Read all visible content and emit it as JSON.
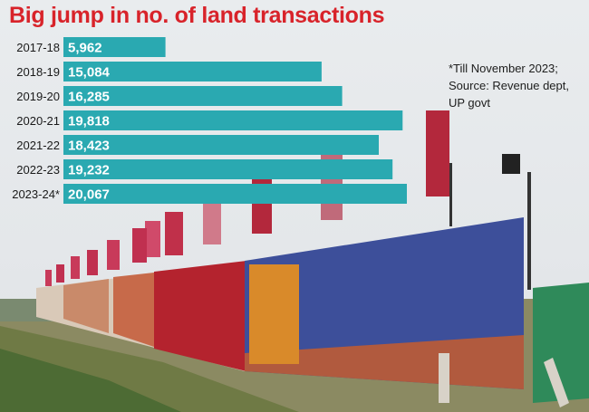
{
  "chart_data": {
    "type": "bar",
    "orientation": "horizontal",
    "title": "Big jump in no. of land transactions",
    "categories": [
      "2017-18",
      "2018-19",
      "2019-20",
      "2020-21",
      "2021-22",
      "2022-23",
      "2023-24*"
    ],
    "values": [
      5962,
      15084,
      16285,
      19818,
      18423,
      19232,
      20067
    ],
    "value_labels": [
      "5,962",
      "15,084",
      "16,285",
      "19,818",
      "18,423",
      "19,232",
      "20,067"
    ],
    "bar_color": "#2aa9b1",
    "notes": [
      "*Till November 2023;",
      "Source: Revenue dept,",
      "UP govt"
    ]
  },
  "colors": {
    "title": "#d8232a",
    "bar": "#2aa9b1"
  }
}
